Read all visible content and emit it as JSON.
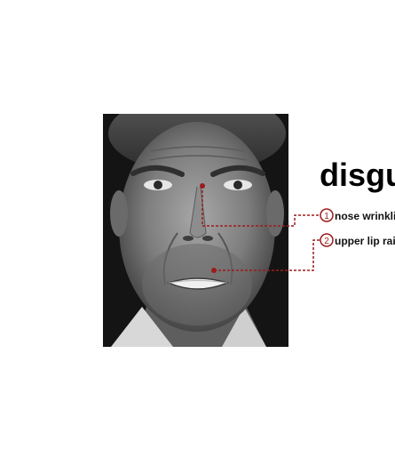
{
  "emotion": "disgu",
  "annotations": [
    {
      "number": "1",
      "text": "nose wrinkli"
    },
    {
      "number": "2",
      "text": "upper lip rai"
    }
  ],
  "colors": {
    "accent": "#9b1c1c",
    "photo_bg": "#1a1a1a"
  }
}
